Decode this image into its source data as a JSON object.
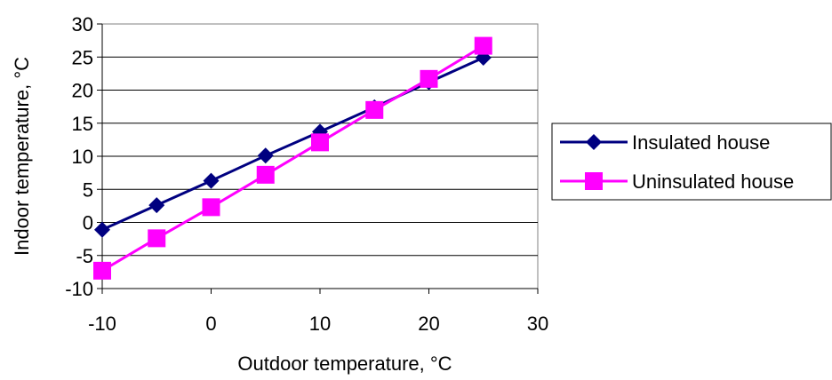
{
  "chart_data": {
    "type": "line",
    "xlabel": "Outdoor temperature,  °C",
    "ylabel": "Indoor temperature,  °C",
    "xlim": [
      -10,
      30
    ],
    "ylim": [
      -10,
      30
    ],
    "xticks": [
      "-10",
      "0",
      "10",
      "20",
      "30"
    ],
    "yticks": [
      "-10",
      "-5",
      "0",
      "5",
      "10",
      "15",
      "20",
      "25",
      "30"
    ],
    "grid": "horizontal",
    "legend_position": "right",
    "x": [
      -10,
      -5,
      0,
      5,
      10,
      15,
      20,
      25
    ],
    "series": [
      {
        "name": "Insulated house",
        "color": "#000080",
        "marker": "diamond",
        "values": [
          -1.1,
          2.6,
          6.3,
          10.1,
          13.7,
          17.4,
          21.2,
          24.9
        ]
      },
      {
        "name": "Uninsulated house",
        "color": "#ff00ff",
        "marker": "square",
        "values": [
          -7.3,
          -2.4,
          2.3,
          7.2,
          12.1,
          17.0,
          21.7,
          26.7
        ]
      }
    ]
  }
}
